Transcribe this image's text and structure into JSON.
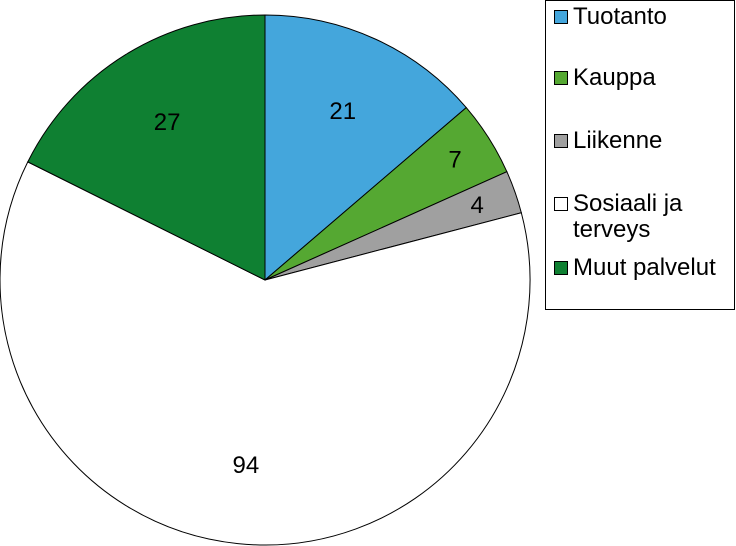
{
  "chart_data": {
    "type": "pie",
    "title": "",
    "categories": [
      "Tuotanto",
      "Kauppa",
      "Liikenne",
      "Sosiaali ja terveys",
      "Muut palvelut"
    ],
    "values": [
      21,
      7,
      4,
      94,
      27
    ],
    "colors": [
      "#44a6dc",
      "#55a832",
      "#a0a0a0",
      "#ffffff",
      "#0f8032"
    ],
    "legend": {
      "position": "right",
      "entries": [
        "Tuotanto",
        "Kauppa",
        "Liikenne",
        "Sosiaali ja terveys",
        "Muut palvelut"
      ]
    },
    "data_labels": [
      "21",
      "7",
      "4",
      "94",
      "27"
    ]
  }
}
